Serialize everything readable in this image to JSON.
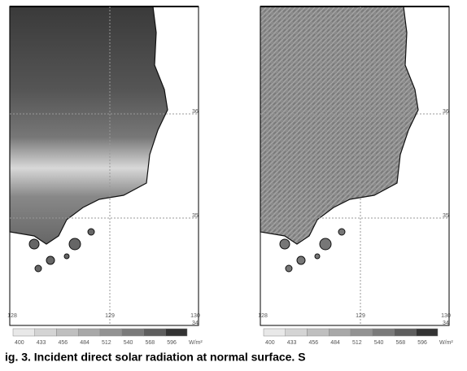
{
  "panels": [
    {
      "x_labels": [
        "128",
        "129",
        "130"
      ],
      "y_labels": [
        "36",
        "35",
        "34"
      ],
      "colorbar_labels": [
        "400",
        "433",
        "456",
        "484",
        "512",
        "540",
        "568",
        "596",
        "W/m²"
      ]
    },
    {
      "x_labels": [
        "128",
        "129",
        "130"
      ],
      "y_labels": [
        "36",
        "35",
        "34"
      ],
      "colorbar_labels": [
        "400",
        "433",
        "456",
        "484",
        "512",
        "540",
        "568",
        "596",
        "W/m²"
      ]
    }
  ],
  "caption": "ig. 3. Incident direct solar radiation at normal surface. S"
}
